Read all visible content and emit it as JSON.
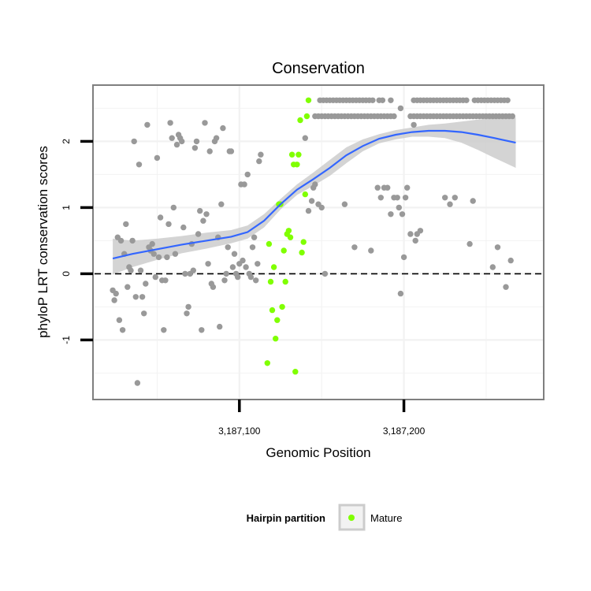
{
  "chart_data": {
    "type": "scatter",
    "title": "Conservation",
    "xlabel": "Genomic Position",
    "ylabel": "phyloP LRT conservation scores",
    "xlim": [
      3187011,
      3187285
    ],
    "ylim": [
      -1.9,
      2.85
    ],
    "x_ticks": [
      {
        "value": 3187100,
        "label": "3,187,100"
      },
      {
        "value": 3187200,
        "label": "3,187,200"
      }
    ],
    "y_ticks": [
      {
        "value": -1,
        "label": "-1"
      },
      {
        "value": 0,
        "label": "0"
      },
      {
        "value": 1,
        "label": "1"
      },
      {
        "value": 2,
        "label": "2"
      }
    ],
    "grid": true,
    "reference_line": {
      "y": 0,
      "style": "dashed"
    },
    "colors": {
      "gray_points": "#999999",
      "mature_points": "#80ff00",
      "smooth_line": "#3366ff",
      "confidence_band": "#cccccc",
      "panel_border": "#7f7f7f",
      "grid": "#f2f2f2"
    },
    "legend": {
      "title": "Hairpin partition",
      "placement": "bottom",
      "entries": [
        {
          "label": "Mature",
          "color": "#80ff00"
        }
      ]
    },
    "series": [
      {
        "color": "#999999",
        "points": [
          [
            3187023,
            -0.25
          ],
          [
            3187024,
            -0.4
          ],
          [
            3187025,
            -0.3
          ],
          [
            3187026,
            0.55
          ],
          [
            3187027,
            -0.7
          ],
          [
            3187028,
            0.5
          ],
          [
            3187029,
            -0.85
          ],
          [
            3187030,
            0.3
          ],
          [
            3187031,
            0.75
          ],
          [
            3187032,
            -0.2
          ],
          [
            3187033,
            0.1
          ],
          [
            3187034,
            0.05
          ],
          [
            3187035,
            0.5
          ],
          [
            3187036,
            2.0
          ],
          [
            3187037,
            -0.35
          ],
          [
            3187038,
            -1.65
          ],
          [
            3187039,
            1.65
          ],
          [
            3187040,
            0.05
          ],
          [
            3187041,
            -0.35
          ],
          [
            3187042,
            -0.6
          ],
          [
            3187043,
            -0.15
          ],
          [
            3187044,
            2.25
          ],
          [
            3187045,
            0.4
          ],
          [
            3187046,
            0.35
          ],
          [
            3187047,
            0.45
          ],
          [
            3187048,
            0.3
          ],
          [
            3187049,
            -0.05
          ],
          [
            3187050,
            1.75
          ],
          [
            3187051,
            0.25
          ],
          [
            3187052,
            0.85
          ],
          [
            3187053,
            -0.1
          ],
          [
            3187054,
            -0.85
          ],
          [
            3187055,
            -0.1
          ],
          [
            3187056,
            0.25
          ],
          [
            3187057,
            0.75
          ],
          [
            3187058,
            2.28
          ],
          [
            3187059,
            2.05
          ],
          [
            3187060,
            1.0
          ],
          [
            3187061,
            0.3
          ],
          [
            3187062,
            1.95
          ],
          [
            3187063,
            2.1
          ],
          [
            3187064,
            2.05
          ],
          [
            3187065,
            2.0
          ],
          [
            3187066,
            0.7
          ],
          [
            3187067,
            0.0
          ],
          [
            3187068,
            -0.6
          ],
          [
            3187069,
            -0.5
          ],
          [
            3187070,
            0.0
          ],
          [
            3187071,
            0.45
          ],
          [
            3187072,
            0.05
          ],
          [
            3187073,
            1.9
          ],
          [
            3187074,
            2.0
          ],
          [
            3187075,
            0.6
          ],
          [
            3187076,
            0.95
          ],
          [
            3187077,
            -0.85
          ],
          [
            3187078,
            0.8
          ],
          [
            3187079,
            2.28
          ],
          [
            3187080,
            0.9
          ],
          [
            3187081,
            0.15
          ],
          [
            3187082,
            1.85
          ],
          [
            3187083,
            -0.15
          ],
          [
            3187084,
            -0.2
          ],
          [
            3187085,
            2.0
          ],
          [
            3187086,
            2.05
          ],
          [
            3187087,
            0.55
          ],
          [
            3187088,
            -0.8
          ],
          [
            3187089,
            1.05
          ],
          [
            3187090,
            2.2
          ],
          [
            3187091,
            -0.1
          ],
          [
            3187092,
            0.0
          ],
          [
            3187093,
            0.4
          ],
          [
            3187094,
            1.85
          ],
          [
            3187095,
            1.85
          ],
          [
            3187096,
            0.1
          ],
          [
            3187097,
            0.3
          ],
          [
            3187098,
            0.0
          ],
          [
            3187099,
            -0.05
          ],
          [
            3187100,
            0.15
          ],
          [
            3187101,
            1.35
          ],
          [
            3187102,
            0.2
          ],
          [
            3187103,
            1.35
          ],
          [
            3187104,
            0.1
          ],
          [
            3187105,
            1.5
          ],
          [
            3187106,
            0.0
          ],
          [
            3187107,
            -0.05
          ],
          [
            3187108,
            0.4
          ],
          [
            3187109,
            0.55
          ],
          [
            3187110,
            -0.1
          ],
          [
            3187111,
            0.15
          ],
          [
            3187112,
            1.7
          ],
          [
            3187113,
            1.8
          ],
          [
            3187140,
            2.05
          ],
          [
            3187142,
            0.95
          ],
          [
            3187144,
            1.1
          ],
          [
            3187145,
            1.3
          ],
          [
            3187146,
            1.35
          ],
          [
            3187148,
            1.05
          ],
          [
            3187150,
            1.0
          ],
          [
            3187152,
            0.0
          ],
          [
            3187164,
            1.05
          ],
          [
            3187170,
            0.4
          ],
          [
            3187180,
            0.35
          ],
          [
            3187184,
            1.3
          ],
          [
            3187186,
            1.15
          ],
          [
            3187188,
            1.3
          ],
          [
            3187190,
            1.3
          ],
          [
            3187192,
            0.9
          ],
          [
            3187194,
            1.15
          ],
          [
            3187196,
            1.15
          ],
          [
            3187197,
            1.0
          ],
          [
            3187198,
            -0.3
          ],
          [
            3187199,
            0.9
          ],
          [
            3187200,
            0.25
          ],
          [
            3187201,
            1.15
          ],
          [
            3187202,
            1.3
          ],
          [
            3187204,
            0.6
          ],
          [
            3187206,
            2.25
          ],
          [
            3187207,
            0.5
          ],
          [
            3187208,
            0.6
          ],
          [
            3187210,
            0.65
          ],
          [
            3187225,
            1.15
          ],
          [
            3187228,
            1.05
          ],
          [
            3187231,
            1.15
          ],
          [
            3187240,
            0.45
          ],
          [
            3187242,
            1.1
          ],
          [
            3187254,
            0.1
          ],
          [
            3187257,
            0.4
          ],
          [
            3187262,
            -0.2
          ],
          [
            3187265,
            0.2
          ],
          [
            3187149,
            2.62
          ],
          [
            3187151,
            2.62
          ],
          [
            3187153,
            2.62
          ],
          [
            3187155,
            2.62
          ],
          [
            3187157,
            2.62
          ],
          [
            3187159,
            2.62
          ],
          [
            3187161,
            2.62
          ],
          [
            3187163,
            2.62
          ],
          [
            3187165,
            2.62
          ],
          [
            3187167,
            2.62
          ],
          [
            3187169,
            2.62
          ],
          [
            3187171,
            2.62
          ],
          [
            3187173,
            2.62
          ],
          [
            3187175,
            2.62
          ],
          [
            3187177,
            2.62
          ],
          [
            3187179,
            2.62
          ],
          [
            3187181,
            2.62
          ],
          [
            3187185,
            2.62
          ],
          [
            3187187,
            2.62
          ],
          [
            3187192,
            2.62
          ],
          [
            3187206,
            2.62
          ],
          [
            3187208,
            2.62
          ],
          [
            3187210,
            2.62
          ],
          [
            3187212,
            2.62
          ],
          [
            3187214,
            2.62
          ],
          [
            3187216,
            2.62
          ],
          [
            3187218,
            2.62
          ],
          [
            3187220,
            2.62
          ],
          [
            3187222,
            2.62
          ],
          [
            3187224,
            2.62
          ],
          [
            3187226,
            2.62
          ],
          [
            3187228,
            2.62
          ],
          [
            3187230,
            2.62
          ],
          [
            3187232,
            2.62
          ],
          [
            3187234,
            2.62
          ],
          [
            3187236,
            2.62
          ],
          [
            3187238,
            2.62
          ],
          [
            3187243,
            2.62
          ],
          [
            3187245,
            2.62
          ],
          [
            3187247,
            2.62
          ],
          [
            3187249,
            2.62
          ],
          [
            3187251,
            2.62
          ],
          [
            3187253,
            2.62
          ],
          [
            3187255,
            2.62
          ],
          [
            3187257,
            2.62
          ],
          [
            3187259,
            2.62
          ],
          [
            3187261,
            2.62
          ],
          [
            3187263,
            2.62
          ],
          [
            3187198,
            2.5
          ],
          [
            3187146,
            2.38
          ],
          [
            3187148,
            2.38
          ],
          [
            3187150,
            2.38
          ],
          [
            3187152,
            2.38
          ],
          [
            3187154,
            2.38
          ],
          [
            3187156,
            2.38
          ],
          [
            3187158,
            2.38
          ],
          [
            3187160,
            2.38
          ],
          [
            3187162,
            2.38
          ],
          [
            3187164,
            2.38
          ],
          [
            3187166,
            2.38
          ],
          [
            3187168,
            2.38
          ],
          [
            3187170,
            2.38
          ],
          [
            3187172,
            2.38
          ],
          [
            3187174,
            2.38
          ],
          [
            3187176,
            2.38
          ],
          [
            3187178,
            2.38
          ],
          [
            3187180,
            2.38
          ],
          [
            3187182,
            2.38
          ],
          [
            3187184,
            2.38
          ],
          [
            3187186,
            2.38
          ],
          [
            3187188,
            2.38
          ],
          [
            3187190,
            2.38
          ],
          [
            3187192,
            2.38
          ],
          [
            3187194,
            2.38
          ],
          [
            3187204,
            2.38
          ],
          [
            3187206,
            2.38
          ],
          [
            3187208,
            2.38
          ],
          [
            3187210,
            2.38
          ],
          [
            3187212,
            2.38
          ],
          [
            3187214,
            2.38
          ],
          [
            3187216,
            2.38
          ],
          [
            3187218,
            2.38
          ],
          [
            3187220,
            2.38
          ],
          [
            3187222,
            2.38
          ],
          [
            3187224,
            2.38
          ],
          [
            3187226,
            2.38
          ],
          [
            3187228,
            2.38
          ],
          [
            3187230,
            2.38
          ],
          [
            3187232,
            2.38
          ],
          [
            3187234,
            2.38
          ],
          [
            3187236,
            2.38
          ],
          [
            3187238,
            2.38
          ],
          [
            3187240,
            2.38
          ],
          [
            3187242,
            2.38
          ],
          [
            3187244,
            2.38
          ],
          [
            3187246,
            2.38
          ],
          [
            3187248,
            2.38
          ],
          [
            3187250,
            2.38
          ],
          [
            3187252,
            2.38
          ],
          [
            3187254,
            2.38
          ],
          [
            3187256,
            2.38
          ],
          [
            3187258,
            2.38
          ],
          [
            3187260,
            2.38
          ],
          [
            3187262,
            2.38
          ],
          [
            3187264,
            2.38
          ],
          [
            3187266,
            2.38
          ]
        ]
      },
      {
        "name": "Mature",
        "color": "#80ff00",
        "points": [
          [
            3187117,
            -1.35
          ],
          [
            3187118,
            0.45
          ],
          [
            3187119,
            -0.12
          ],
          [
            3187120,
            -0.55
          ],
          [
            3187121,
            0.1
          ],
          [
            3187122,
            -0.98
          ],
          [
            3187123,
            -0.7
          ],
          [
            3187124,
            1.05
          ],
          [
            3187125,
            1.05
          ],
          [
            3187126,
            -0.5
          ],
          [
            3187127,
            0.35
          ],
          [
            3187128,
            -0.12
          ],
          [
            3187129,
            0.6
          ],
          [
            3187130,
            0.65
          ],
          [
            3187131,
            0.55
          ],
          [
            3187132,
            1.8
          ],
          [
            3187133,
            1.65
          ],
          [
            3187134,
            -1.48
          ],
          [
            3187135,
            1.65
          ],
          [
            3187136,
            1.8
          ],
          [
            3187137,
            2.32
          ],
          [
            3187138,
            0.32
          ],
          [
            3187139,
            0.48
          ],
          [
            3187140,
            1.2
          ],
          [
            3187141,
            2.38
          ],
          [
            3187142,
            2.62
          ]
        ]
      }
    ],
    "smooth": {
      "x": [
        3187023,
        3187035,
        3187050,
        3187065,
        3187080,
        3187095,
        3187105,
        3187115,
        3187125,
        3187135,
        3187145,
        3187155,
        3187165,
        3187175,
        3187185,
        3187195,
        3187205,
        3187215,
        3187225,
        3187235,
        3187245,
        3187255,
        3187268
      ],
      "y": [
        0.23,
        0.3,
        0.37,
        0.44,
        0.5,
        0.56,
        0.63,
        0.8,
        1.05,
        1.27,
        1.43,
        1.6,
        1.79,
        1.93,
        2.04,
        2.1,
        2.14,
        2.16,
        2.16,
        2.14,
        2.1,
        2.05,
        1.98
      ],
      "lo": [
        -0.01,
        0.1,
        0.21,
        0.31,
        0.38,
        0.46,
        0.53,
        0.7,
        0.97,
        1.19,
        1.33,
        1.48,
        1.67,
        1.85,
        1.97,
        2.03,
        2.07,
        2.07,
        2.05,
        1.98,
        1.87,
        1.75,
        1.6
      ],
      "hi": [
        0.53,
        0.5,
        0.53,
        0.57,
        0.62,
        0.66,
        0.73,
        0.9,
        1.13,
        1.35,
        1.53,
        1.72,
        1.91,
        2.03,
        2.11,
        2.17,
        2.21,
        2.25,
        2.27,
        2.3,
        2.33,
        2.35,
        2.36
      ]
    }
  }
}
